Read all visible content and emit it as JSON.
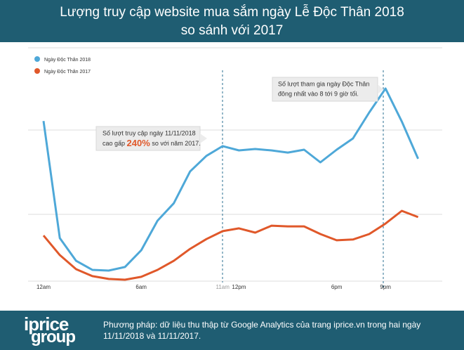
{
  "chart_data": {
    "type": "line",
    "title_line1": "Lượng truy cập website mua sắm ngày Lễ Độc Thân 2018",
    "title_line2": "so sánh với 2017",
    "categories": [
      "12am",
      null,
      null,
      null,
      null,
      null,
      "6am",
      null,
      null,
      null,
      null,
      "11am",
      "12pm",
      null,
      null,
      null,
      null,
      null,
      "6pm",
      null,
      null,
      "9pm",
      null,
      null
    ],
    "series": [
      {
        "name": "Ngày Độc Thân 2018",
        "color": "#4ea8d8",
        "values": [
          67,
          18,
          8.5,
          4.7,
          4.4,
          5.9,
          12.9,
          25.3,
          32.6,
          45.9,
          52.4,
          56.5,
          54.7,
          55.3,
          54.7,
          53.8,
          55,
          49.7,
          55,
          59.7,
          70.6,
          80.6,
          66.8,
          51.2
        ]
      },
      {
        "name": "Ngày Độc Thân 2017",
        "color": "#e0582a",
        "values": [
          19.1,
          10.9,
          5,
          2.1,
          0.9,
          0.6,
          1.8,
          4.7,
          8.5,
          13.5,
          17.6,
          20.9,
          22.1,
          20.3,
          23.2,
          22.9,
          22.9,
          19.7,
          17.1,
          17.4,
          19.7,
          24.1,
          29.4,
          26.8
        ]
      }
    ],
    "ylim": [
      0,
      100
    ],
    "annotation1": {
      "line1": "Số lượt truy cập ngày 11/11/2018",
      "pre": "cao gấp",
      "highlight": "240%",
      "post": "so với năm 2017."
    },
    "annotation2": {
      "line1": "Số lượt tham gia ngày Độc Thân",
      "line2": "đông nhất vào 8 tới 9 giờ tối."
    }
  },
  "footer": {
    "logo_top": "iprice",
    "logo_bottom": "group",
    "method": "Phương pháp: dữ liệu thu thập từ Google Analytics của trang iprice.vn trong hai ngày 11/11/2018 và 11/11/2017."
  }
}
